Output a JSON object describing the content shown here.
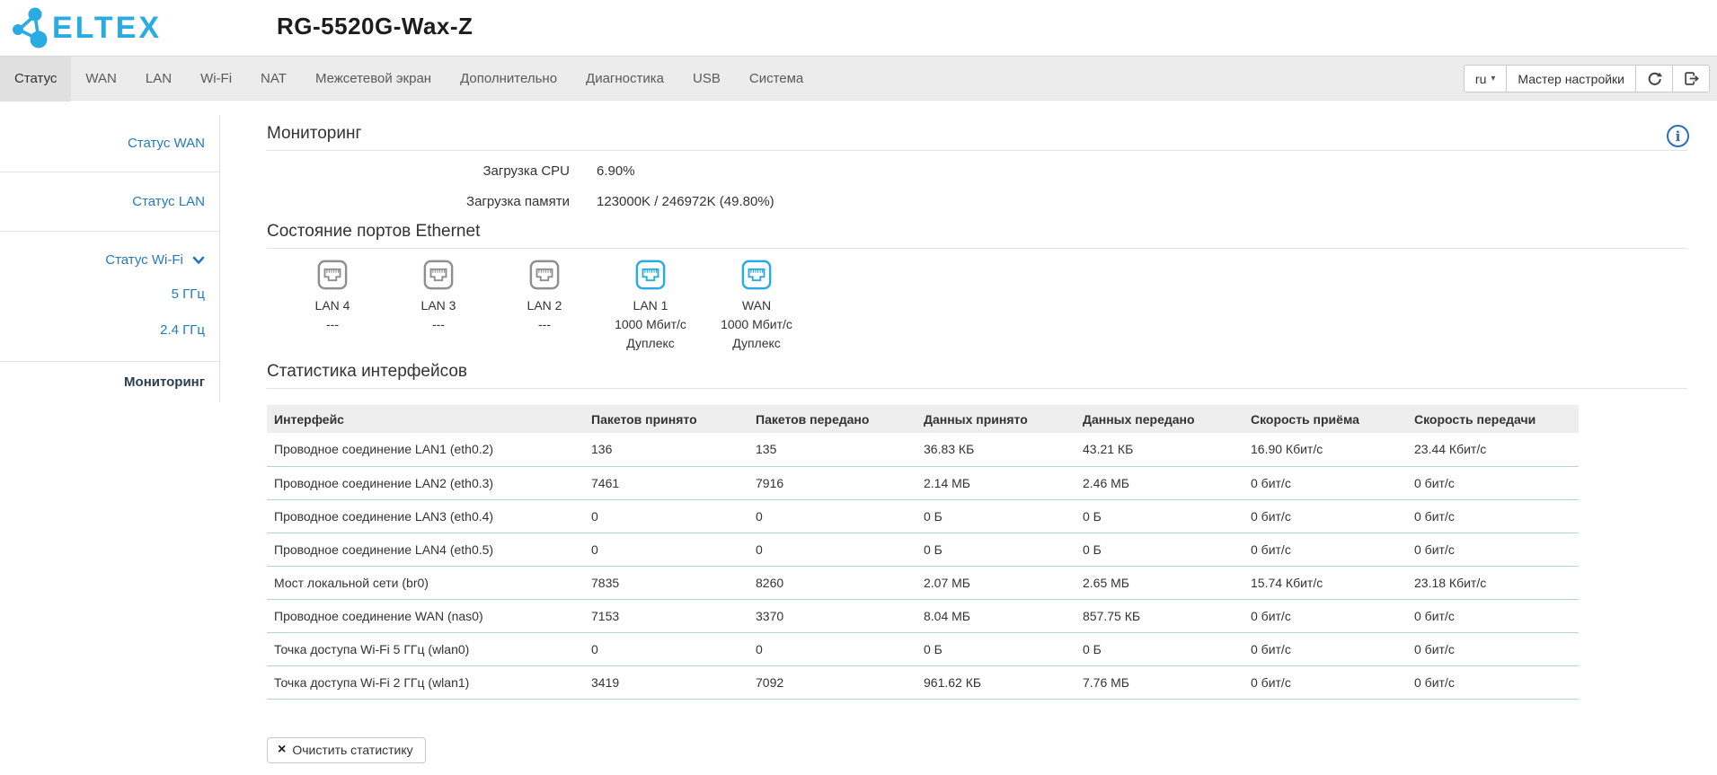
{
  "header": {
    "logo_text": "ELTEX",
    "device_title": "RG-5520G-Wax-Z"
  },
  "navbar": {
    "tabs": [
      {
        "label": "Статус",
        "active": true
      },
      {
        "label": "WAN",
        "active": false
      },
      {
        "label": "LAN",
        "active": false
      },
      {
        "label": "Wi-Fi",
        "active": false
      },
      {
        "label": "NAT",
        "active": false
      },
      {
        "label": "Межсетевой экран",
        "active": false
      },
      {
        "label": "Дополнительно",
        "active": false
      },
      {
        "label": "Диагностика",
        "active": false
      },
      {
        "label": "USB",
        "active": false
      },
      {
        "label": "Система",
        "active": false
      }
    ],
    "controls": {
      "language": "ru",
      "wizard_label": "Мастер настройки"
    }
  },
  "sidebar": {
    "items": [
      {
        "label": "Статус WAN"
      },
      {
        "label": "Статус LAN"
      },
      {
        "label": "Статус Wi-Fi",
        "expanded": true
      },
      {
        "label": "5 ГГц"
      },
      {
        "label": "2.4 ГГц"
      },
      {
        "label": "Мониторинг",
        "active": true
      }
    ]
  },
  "monitoring": {
    "heading": "Мониторинг",
    "cpu_label": "Загрузка CPU",
    "cpu_value": "6.90%",
    "memory_label": "Загрузка памяти",
    "memory_value": "123000K / 246972K (49.80%)"
  },
  "ethernet_ports": {
    "heading": "Состояние портов Ethernet",
    "items": [
      {
        "name": "LAN 4",
        "line1": "---",
        "line2": "",
        "active": false
      },
      {
        "name": "LAN 3",
        "line1": "---",
        "line2": "",
        "active": false
      },
      {
        "name": "LAN 2",
        "line1": "---",
        "line2": "",
        "active": false
      },
      {
        "name": "LAN 1",
        "line1": "1000 Мбит/с",
        "line2": "Дуплекс",
        "active": true
      },
      {
        "name": "WAN",
        "line1": "1000 Мбит/с",
        "line2": "Дуплекс",
        "active": true
      }
    ]
  },
  "stats_table": {
    "heading": "Статистика интерфейсов",
    "columns": [
      "Интерфейс",
      "Пакетов принято",
      "Пакетов передано",
      "Данных принято",
      "Данных передано",
      "Скорость приёма",
      "Скорость передачи"
    ],
    "rows": [
      [
        "Проводное соединение LAN1 (eth0.2)",
        "136",
        "135",
        "36.83 КБ",
        "43.21 КБ",
        "16.90 Кбит/с",
        "23.44 Кбит/с"
      ],
      [
        "Проводное соединение LAN2 (eth0.3)",
        "7461",
        "7916",
        "2.14 МБ",
        "2.46 МБ",
        "0 бит/с",
        "0 бит/с"
      ],
      [
        "Проводное соединение LAN3 (eth0.4)",
        "0",
        "0",
        "0 Б",
        "0 Б",
        "0 бит/с",
        "0 бит/с"
      ],
      [
        "Проводное соединение LAN4 (eth0.5)",
        "0",
        "0",
        "0 Б",
        "0 Б",
        "0 бит/с",
        "0 бит/с"
      ],
      [
        "Мост локальной сети (br0)",
        "7835",
        "8260",
        "2.07 МБ",
        "2.65 МБ",
        "15.74 Кбит/с",
        "23.18 Кбит/с"
      ],
      [
        "Проводное соединение WAN (nas0)",
        "7153",
        "3370",
        "8.04 МБ",
        "857.75 КБ",
        "0 бит/с",
        "0 бит/с"
      ],
      [
        "Точка доступа Wi-Fi 5 ГГц (wlan0)",
        "0",
        "0",
        "0 Б",
        "0 Б",
        "0 бит/с",
        "0 бит/с"
      ],
      [
        "Точка доступа Wi-Fi 2 ГГц (wlan1)",
        "3419",
        "7092",
        "961.62 КБ",
        "7.76 МБ",
        "0 бит/с",
        "0 бит/с"
      ]
    ],
    "clear_button_label": "Очистить статистику"
  },
  "icons": {
    "caret_down": "▾",
    "clear_x": "×",
    "info": "i"
  },
  "colors": {
    "brand_blue": "#2aabe1",
    "link_blue": "#2578be",
    "active_port_blue": "#29abe2",
    "table_divider": "#b4d2da",
    "info_blue": "#2a6db8"
  }
}
